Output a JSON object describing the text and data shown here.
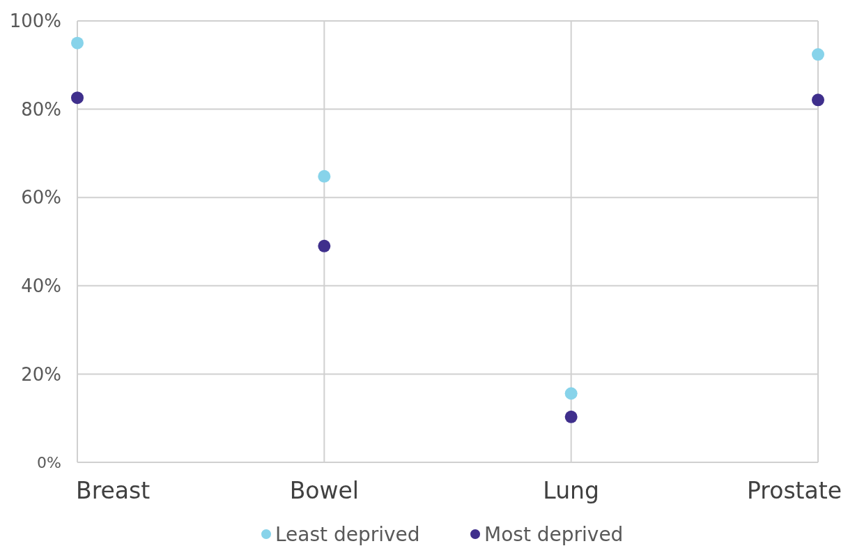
{
  "chart_data": {
    "type": "scatter",
    "categories": [
      "Breast",
      "Bowel",
      "Lung",
      "Prostate"
    ],
    "series": [
      {
        "name": "Least deprived",
        "color": "#87d3ea",
        "values": [
          95,
          64.8,
          15.6,
          92.4
        ]
      },
      {
        "name": "Most deprived",
        "color": "#3f2f8c",
        "values": [
          82.6,
          49,
          10.3,
          82.1
        ]
      }
    ],
    "ylim": [
      0,
      100
    ],
    "yticks": [
      {
        "value": 0,
        "label": "0%"
      },
      {
        "value": 20,
        "label": "20%"
      },
      {
        "value": 40,
        "label": "40%"
      },
      {
        "value": 60,
        "label": "60%"
      },
      {
        "value": 80,
        "label": "80%"
      },
      {
        "value": 100,
        "label": "100%"
      }
    ],
    "grid": true,
    "legend": "bottom",
    "marker": "circle"
  }
}
